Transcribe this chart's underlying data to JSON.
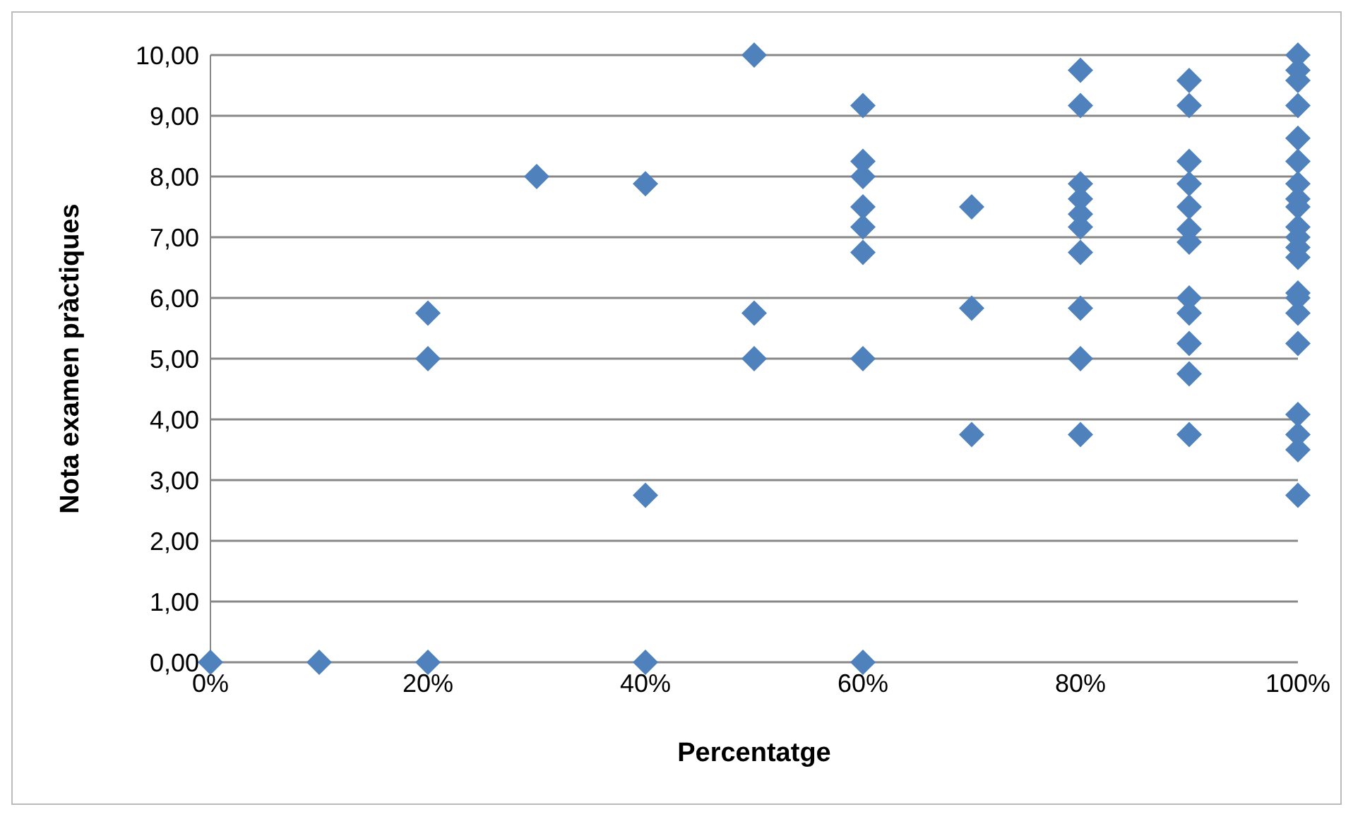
{
  "chart_data": {
    "type": "scatter",
    "xlabel": "Percentatge",
    "ylabel": "Nota examen pràctiques",
    "marker": "diamond",
    "grid": "y",
    "legend": false,
    "xlim": [
      0,
      100
    ],
    "xticks": [
      {
        "value": 0,
        "label": "0%"
      },
      {
        "value": 20,
        "label": "20%"
      },
      {
        "value": 40,
        "label": "40%"
      },
      {
        "value": 60,
        "label": "60%"
      },
      {
        "value": 80,
        "label": "80%"
      },
      {
        "value": 100,
        "label": "100%"
      }
    ],
    "ylim": [
      0,
      10
    ],
    "yticks": [
      {
        "value": 0,
        "label": "0,00"
      },
      {
        "value": 1,
        "label": "1,00"
      },
      {
        "value": 2,
        "label": "2,00"
      },
      {
        "value": 3,
        "label": "3,00"
      },
      {
        "value": 4,
        "label": "4,00"
      },
      {
        "value": 5,
        "label": "5,00"
      },
      {
        "value": 6,
        "label": "6,00"
      },
      {
        "value": 7,
        "label": "7,00"
      },
      {
        "value": 8,
        "label": "8,00"
      },
      {
        "value": 9,
        "label": "9,00"
      },
      {
        "value": 10,
        "label": "10,00"
      }
    ],
    "series": [
      {
        "color": "#4f81bd",
        "x": [
          0,
          10,
          20,
          20,
          20,
          30,
          40,
          40,
          40,
          50,
          50,
          50,
          60,
          60,
          60,
          60,
          60,
          60,
          60,
          60,
          70,
          70,
          70,
          80,
          80,
          80,
          80,
          80,
          80,
          80,
          80,
          80,
          80,
          90,
          90,
          90,
          90,
          90,
          90,
          90,
          90,
          90,
          90,
          90,
          90,
          100,
          100,
          100,
          100,
          100,
          100,
          100,
          100,
          100,
          100,
          100,
          100,
          100,
          100,
          100,
          100,
          100,
          100,
          100,
          100,
          100
        ],
        "values": [
          0,
          0,
          5.75,
          5,
          0,
          8,
          7.88,
          2.75,
          0,
          10,
          5.75,
          5,
          9.17,
          8.25,
          8,
          7.5,
          7.17,
          6.75,
          5,
          0,
          7.5,
          5.83,
          3.75,
          9.75,
          9.17,
          7.88,
          7.63,
          7.38,
          7.17,
          6.75,
          5.83,
          5,
          3.75,
          9.58,
          9.17,
          8.25,
          7.88,
          7.5,
          7.13,
          6.92,
          6,
          5.75,
          5.25,
          4.75,
          3.75,
          10,
          9.75,
          9.58,
          9.17,
          8.63,
          8.25,
          7.88,
          7.63,
          7.5,
          7.17,
          7,
          6.83,
          6.67,
          6.08,
          6,
          5.75,
          5.25,
          4.08,
          3.75,
          3.5,
          2.75
        ]
      }
    ]
  }
}
